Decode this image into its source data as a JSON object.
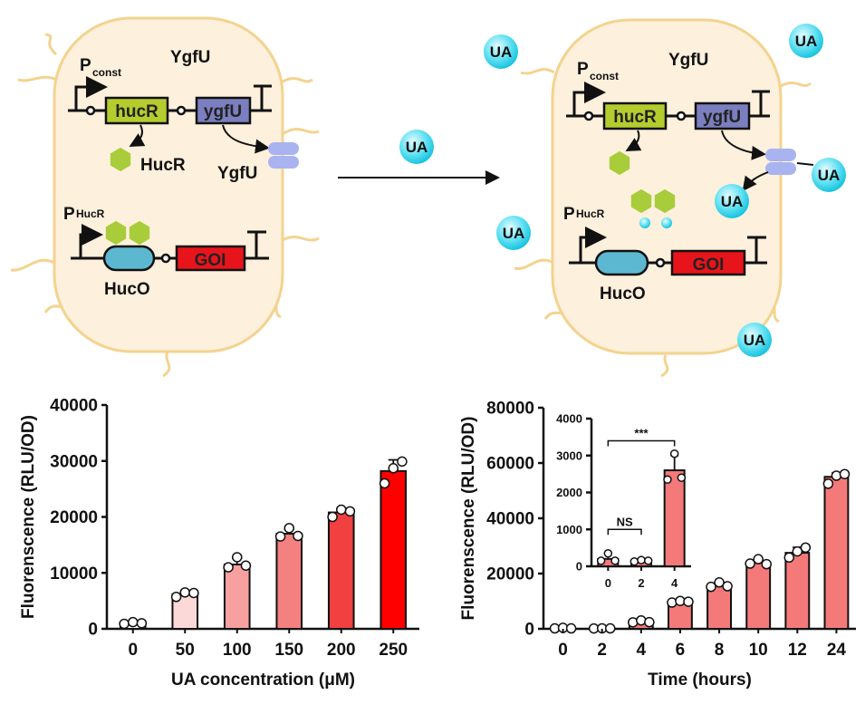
{
  "diagram": {
    "left_cell": {
      "p_const": "P",
      "p_const_sub": "const",
      "ygfu_top": "YgfU",
      "hucr_gene": "hucR",
      "ygfu_gene": "ygfU",
      "hucr_protein": "HucR",
      "ygfu_protein": "YgfU",
      "p_hucr": "P",
      "p_hucr_sub": "HucR",
      "goi": "GOI",
      "huco": "HucO"
    },
    "right_cell": {
      "p_const": "P",
      "p_const_sub": "const",
      "ygfu_top": "YgfU",
      "hucr_gene": "hucR",
      "ygfu_gene": "ygfU",
      "p_hucr": "P",
      "p_hucr_sub": "HucR",
      "goi": "GOI",
      "huco": "HucO"
    },
    "ua_label": "UA",
    "colors": {
      "cell_fill": "#fdf0dc",
      "cell_stroke": "#f3d38f",
      "hucr": "#b5cc2e",
      "ygfu": "#7b7fbf",
      "huco": "#5cb8d0",
      "goi": "#e8141b",
      "transporter": "#a9b3f0",
      "ua": "#3fd6ee"
    }
  },
  "chart_data": [
    {
      "type": "bar",
      "xlabel": "UA concentration (μM)",
      "ylabel": "Fluorenscence (RLU/OD)",
      "categories": [
        "0",
        "50",
        "100",
        "150",
        "200",
        "250"
      ],
      "values": [
        1000,
        6200,
        11500,
        17000,
        20800,
        28200
      ],
      "error_upper": [
        1200,
        6700,
        12600,
        17800,
        21500,
        30200
      ],
      "points": [
        [
          900,
          1200,
          1000
        ],
        [
          5700,
          6500,
          6400
        ],
        [
          11000,
          12800,
          11300
        ],
        [
          16500,
          18000,
          16600
        ],
        [
          20000,
          21300,
          21000
        ],
        [
          26000,
          28700,
          29900
        ]
      ],
      "colors": [
        "#ffffff",
        "#fbd9d9",
        "#f7a0a0",
        "#f58080",
        "#f04040",
        "#ff0000"
      ],
      "ylim": [
        0,
        40000
      ],
      "yticks": [
        "0",
        "10000",
        "20000",
        "30000",
        "40000"
      ],
      "grid": false
    },
    {
      "type": "bar",
      "xlabel": "Time (hours)",
      "ylabel": "Fluorenscence (RLU/OD)",
      "categories": [
        "0",
        "2",
        "4",
        "6",
        "8",
        "10",
        "12",
        "24"
      ],
      "values": [
        200,
        150,
        2600,
        9800,
        15800,
        24000,
        27500,
        55000
      ],
      "error_upper": [
        350,
        200,
        3000,
        10200,
        16600,
        25000,
        29500,
        56500
      ],
      "points": [
        [
          150,
          350,
          150
        ],
        [
          130,
          170,
          150
        ],
        [
          2350,
          3050,
          2400
        ],
        [
          9500,
          10100,
          9800
        ],
        [
          15200,
          16800,
          15400
        ],
        [
          23600,
          25200,
          23400
        ],
        [
          25800,
          28000,
          29400
        ],
        [
          52500,
          55400,
          56000
        ]
      ],
      "colors": [
        "#f47a7a"
      ],
      "ylim": [
        0,
        80000
      ],
      "yticks": [
        "0",
        "20000",
        "40000",
        "60000",
        "80000"
      ],
      "grid": false,
      "inset": {
        "categories": [
          "0",
          "2",
          "4"
        ],
        "values": [
          200,
          150,
          2600
        ],
        "error_upper": [
          350,
          200,
          3000
        ],
        "points": [
          [
            150,
            350,
            150
          ],
          [
            130,
            170,
            150
          ],
          [
            2350,
            3050,
            2400
          ]
        ],
        "ylim": [
          0,
          4000
        ],
        "yticks": [
          "0",
          "1000",
          "2000",
          "3000",
          "4000"
        ],
        "annotations": [
          {
            "from": "0",
            "to": "2",
            "text": "NS",
            "y": 1000
          },
          {
            "from": "0",
            "to": "4",
            "text": "***",
            "y": 3400
          }
        ]
      }
    }
  ]
}
